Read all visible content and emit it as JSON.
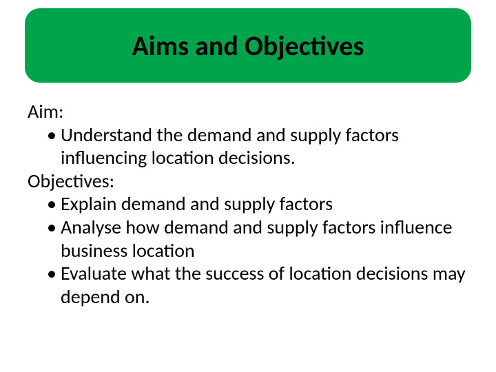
{
  "title": "Aims and Objectives",
  "aim_label": "Aim:",
  "aim_bullets": [
    "Understand the demand and supply factors influencing location decisions."
  ],
  "objectives_label": "Objectives:",
  "objectives_bullets": [
    "Explain demand and supply factors",
    "Analyse how demand and supply factors influence business location",
    "Evaluate what the success of location decisions may depend on."
  ],
  "colors": {
    "title_bg": "#00a44a",
    "title_text": "#000000",
    "body_text": "#000000",
    "slide_bg": "#ffffff"
  },
  "typography": {
    "title_fontsize": 40,
    "title_weight": 700,
    "body_fontsize": 28,
    "font_family": "Calibri"
  },
  "layout": {
    "slide_width": 720,
    "slide_height": 540,
    "title_box_radius": 22
  }
}
